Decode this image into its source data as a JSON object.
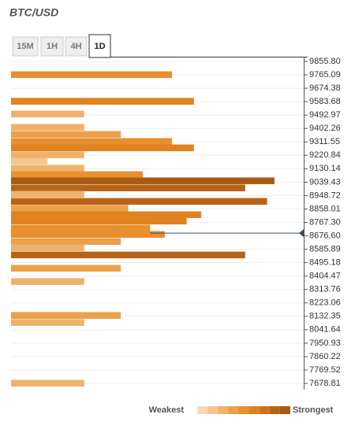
{
  "chart_data": {
    "type": "bar",
    "orientation": "horizontal",
    "title": "BTC/USD",
    "tabs": [
      "15M",
      "1H",
      "4H",
      "1D"
    ],
    "active_tab": 3,
    "levels": [
      9765,
      9585,
      9499,
      9409,
      9361,
      9313,
      9270,
      9223,
      9180,
      9132,
      9089,
      9047,
      8999,
      8956,
      8908,
      8861,
      8818,
      8775,
      8727,
      8685,
      8637,
      8594,
      8546,
      8456,
      8366,
      8137,
      8089,
      7679
    ],
    "values": [
      11,
      12.5,
      5,
      5,
      7.5,
      11,
      12.5,
      5,
      2.5,
      5,
      9,
      18,
      16,
      5,
      17.5,
      8,
      13,
      12,
      9.5,
      10.5,
      7.5,
      5,
      16,
      7.5,
      5,
      7.5,
      5,
      5
    ],
    "xlim": [
      0,
      20
    ],
    "ylim": [
      7678.81,
      9855.8
    ],
    "yticks": [
      {
        "value": 9855.8,
        "label": "9855.80"
      },
      9765.09,
      9674.38,
      9583.68,
      9492.97,
      9402.26,
      9311.55,
      9220.84,
      9130.14,
      9039.43,
      8948.72,
      8858.01,
      {
        "value": 8767.3,
        "label": "8767.30"
      },
      {
        "value": 8676.6,
        "label": "8676.60"
      },
      8585.89,
      8495.18,
      8404.47,
      8313.76,
      8223.06,
      8132.35,
      8041.64,
      7950.93,
      7860.22,
      7769.52,
      7678.81
    ],
    "current_price": 8695,
    "palette": [
      "#f8d9b5",
      "#f4c690",
      "#f0b26b",
      "#eca04a",
      "#e98f2d",
      "#e08220",
      "#cc721b",
      "#b86418",
      "#a85a15"
    ],
    "legend": {
      "low": "Weakest",
      "high": "Strongest"
    },
    "grid": true
  }
}
